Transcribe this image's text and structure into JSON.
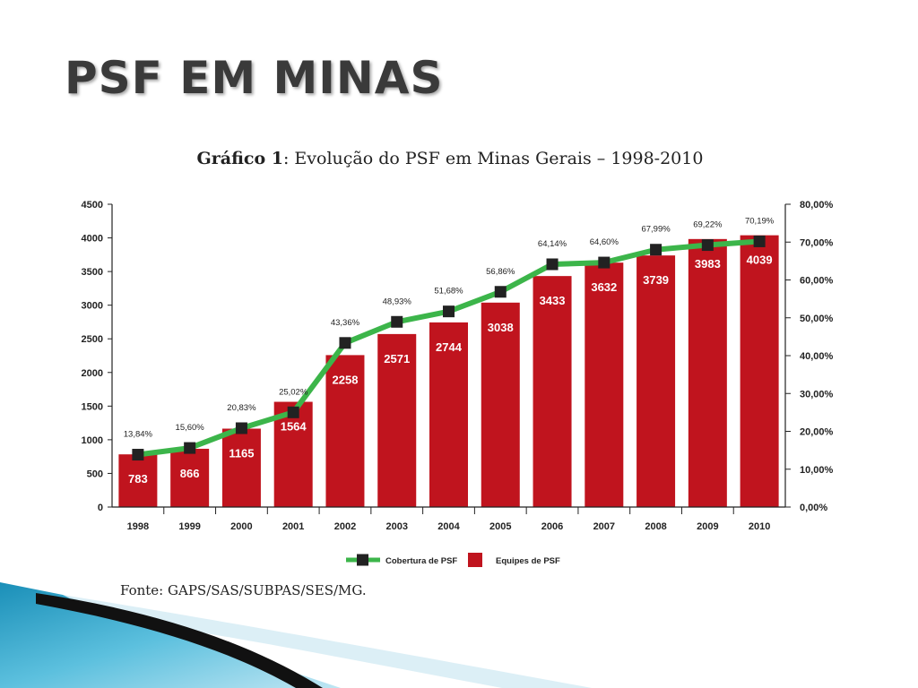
{
  "slide": {
    "title": "PSF EM MINAS"
  },
  "chart_title": {
    "bold": "Gráfico 1",
    "rest": ": Evolução do PSF em Minas Gerais – 1998-2010"
  },
  "source": "Fonte: GAPS/SAS/SUBPAS/SES/MG.",
  "colors": {
    "bar": "#c0141e",
    "line": "#3cb54a",
    "marker": "#222222"
  },
  "chart_data": {
    "type": "bar+line",
    "categories": [
      "1998",
      "1999",
      "2000",
      "2001",
      "2002",
      "2003",
      "2004",
      "2005",
      "2006",
      "2007",
      "2008",
      "2009",
      "2010"
    ],
    "series": [
      {
        "name": "Equipes de PSF",
        "type": "bar",
        "axis": "left",
        "values": [
          783,
          866,
          1165,
          1564,
          2258,
          2571,
          2744,
          3038,
          3433,
          3632,
          3739,
          3983,
          4039
        ],
        "labels": [
          "783",
          "866",
          "1165",
          "1564",
          "2258",
          "2571",
          "2744",
          "3038",
          "3433",
          "3632",
          "3739",
          "3983",
          "4039"
        ]
      },
      {
        "name": "Cobertura de PSF",
        "type": "line",
        "axis": "right",
        "values": [
          13.84,
          15.6,
          20.83,
          25.02,
          43.36,
          48.93,
          51.68,
          56.86,
          64.14,
          64.6,
          67.99,
          69.22,
          70.19
        ],
        "labels": [
          "13,84%",
          "15,60%",
          "20,83%",
          "25,02%",
          "43,36%",
          "48,93%",
          "51,68%",
          "56,86%",
          "64,14%",
          "64,60%",
          "67,99%",
          "69,22%",
          "70,19%"
        ]
      }
    ],
    "y_left": {
      "min": 0,
      "max": 4500,
      "ticks": [
        "0",
        "500",
        "1000",
        "1500",
        "2000",
        "2500",
        "3000",
        "3500",
        "4000",
        "4500"
      ]
    },
    "y_right": {
      "min": 0,
      "max": 80,
      "ticks": [
        "0,00%",
        "10,00%",
        "20,00%",
        "30,00%",
        "40,00%",
        "50,00%",
        "60,00%",
        "70,00%",
        "80,00%"
      ]
    },
    "legend": {
      "position": "bottom",
      "items": [
        "Cobertura de PSF",
        "Equipes de PSF"
      ]
    },
    "grid": false
  }
}
